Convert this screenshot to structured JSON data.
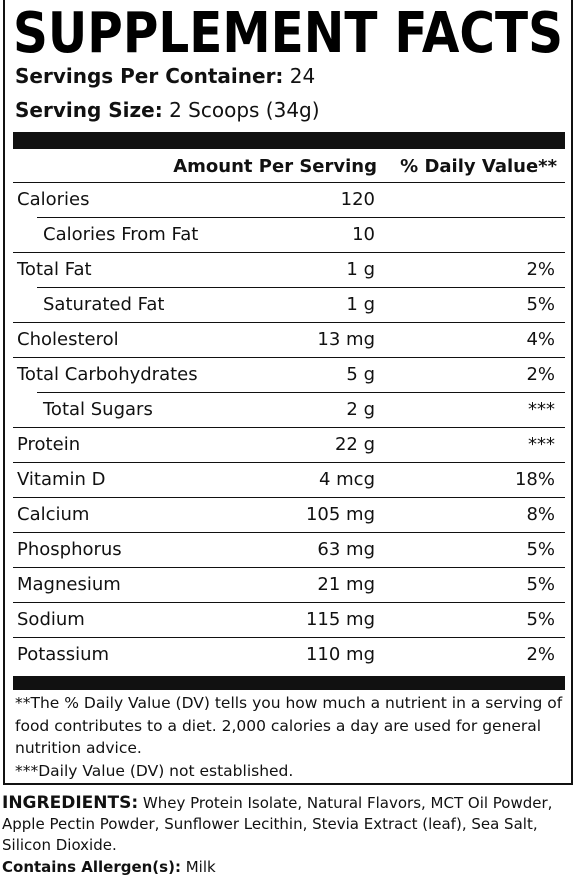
{
  "title": "SUPPLEMENT FACTS",
  "servings": {
    "container_label": "Servings Per Container:",
    "container_value": "24",
    "size_label": "Serving Size:",
    "size_value": "2 Scoops (34g)"
  },
  "header": {
    "amount": "Amount Per Serving",
    "daily_value": "% Daily Value**"
  },
  "rows": [
    {
      "name": "Calories",
      "amount": "120",
      "sub": [
        {
          "name": "Calories From Fat",
          "amount": "10"
        }
      ]
    },
    {
      "name": "Total Fat",
      "amount": "1 g",
      "dv": "2%",
      "sub": [
        {
          "name": "Saturated Fat",
          "amount": "1 g",
          "dv": "5%"
        }
      ]
    },
    {
      "name": "Cholesterol",
      "amount": "13 mg",
      "dv": "4%"
    },
    {
      "name": "Total Carbohydrates",
      "amount": "5 g",
      "dv": "2%",
      "sub": [
        {
          "name": "Total Sugars",
          "amount": "2 g",
          "dv": "***"
        }
      ]
    },
    {
      "name": "Protein",
      "amount": "22 g",
      "dv": "***"
    },
    {
      "name": "Vitamin D",
      "amount": "4 mcg",
      "dv": "18%"
    },
    {
      "name": "Calcium",
      "amount": "105 mg",
      "dv": "8%"
    },
    {
      "name": "Phosphorus",
      "amount": "63 mg",
      "dv": "5%"
    },
    {
      "name": "Magnesium",
      "amount": "21 mg",
      "dv": "5%"
    },
    {
      "name": "Sodium",
      "amount": "115 mg",
      "dv": "5%"
    },
    {
      "name": "Potassium",
      "amount": "110 mg",
      "dv": "2%"
    }
  ],
  "footnotes": [
    "**The % Daily Value (DV) tells you how much a nutrient in a serving of food contributes to a diet. 2,000 calories a day are used for general nutrition advice.",
    "***Daily Value (DV) not established."
  ],
  "ingredients": {
    "label": "INGREDIENTS:",
    "text": "Whey Protein Isolate, Natural Flavors, MCT Oil Powder, Apple Pectin Powder, Sunflower Lecithin, Stevia Extract (leaf), Sea Salt, Silicon Dioxide."
  },
  "allergens": {
    "label": "Contains Allergen(s):",
    "text": "Milk"
  }
}
